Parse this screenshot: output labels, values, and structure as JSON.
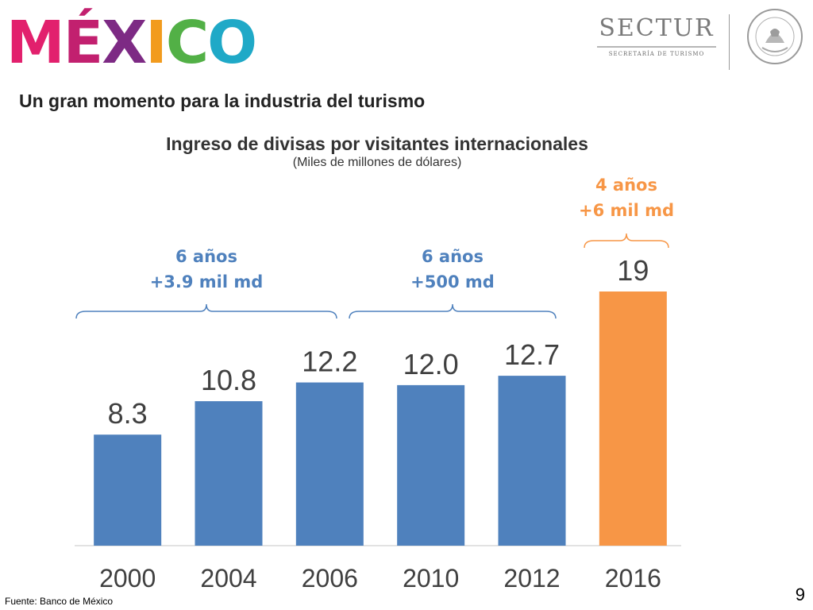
{
  "header": {
    "logo_letters": [
      {
        "char": "M",
        "color": "#e2206d"
      },
      {
        "char": "É",
        "color": "#c2206f"
      },
      {
        "char": "X",
        "color": "#7d2a84"
      },
      {
        "char": "I",
        "color": "#f29b1d"
      },
      {
        "char": "C",
        "color": "#52b046"
      },
      {
        "char": "O",
        "color": "#1fa9c7"
      }
    ],
    "agency_name": "SECTUR",
    "agency_subtitle": "SECRETARÍA DE TURISMO",
    "seal_text": "ESTADOS UNIDOS MEXICANOS",
    "section_heading": "Un gran momento para la industria del turismo"
  },
  "chart_data": {
    "type": "bar",
    "title": "Ingreso de divisas por visitantes internacionales",
    "subtitle": "(Miles de millones de dólares)",
    "categories": [
      "2000",
      "2004",
      "2006",
      "2010",
      "2012",
      "2016"
    ],
    "values": [
      8.3,
      10.8,
      12.2,
      12.0,
      12.7,
      19
    ],
    "value_labels": [
      "8.3",
      "10.8",
      "12.2",
      "12.0",
      "12.7",
      "19"
    ],
    "bar_colors": [
      "#4f81bd",
      "#4f81bd",
      "#4f81bd",
      "#4f81bd",
      "#4f81bd",
      "#f79646"
    ],
    "ylim": [
      0,
      20
    ],
    "grid": false,
    "annotations": [
      {
        "from": "2000",
        "to": "2006",
        "line1": "6 años",
        "line2": "+3.9 mil md",
        "color": "#4f81bd"
      },
      {
        "from": "2006",
        "to": "2012",
        "line1": "6 años",
        "line2": "+500 md",
        "color": "#4f81bd"
      },
      {
        "from": "2016",
        "to": "2016",
        "line1": "4 años",
        "line2": "+6 mil md",
        "color": "#f79646"
      }
    ]
  },
  "footer": {
    "source": "Fuente: Banco de México",
    "page_number": "9"
  }
}
